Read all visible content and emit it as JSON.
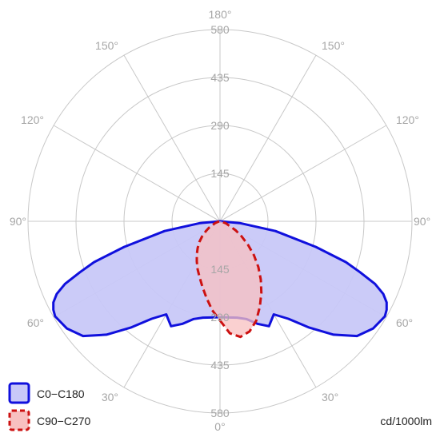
{
  "chart_data": {
    "type": "polar-luminous-intensity",
    "unit": "cd/1000lm",
    "rings": [
      145,
      290,
      435,
      580
    ],
    "max": 580,
    "angle_labels": [
      {
        "deg": 0,
        "side": "bottom",
        "text": "0°"
      },
      {
        "deg": 30,
        "side": "left",
        "text": "30°"
      },
      {
        "deg": 30,
        "side": "right",
        "text": "30°"
      },
      {
        "deg": 60,
        "side": "left",
        "text": "60°"
      },
      {
        "deg": 60,
        "side": "right",
        "text": "60°"
      },
      {
        "deg": 90,
        "side": "left",
        "text": "90°"
      },
      {
        "deg": 90,
        "side": "right",
        "text": "90°"
      },
      {
        "deg": 120,
        "side": "left",
        "text": "120°"
      },
      {
        "deg": 120,
        "side": "right",
        "text": "120°"
      },
      {
        "deg": 150,
        "side": "left",
        "text": "150°"
      },
      {
        "deg": 150,
        "side": "right",
        "text": "150°"
      },
      {
        "deg": 180,
        "side": "top",
        "text": "180°"
      }
    ],
    "series": [
      {
        "name": "C0−C180",
        "color": "#1010dd",
        "fill": "#c8c8f8",
        "dash": "solid",
        "gamma": [
          0,
          5,
          10,
          15,
          20,
          25,
          30,
          35,
          40,
          45,
          50,
          55,
          60,
          62,
          64,
          66,
          68,
          70,
          72,
          75,
          80,
          85,
          90
        ],
        "intensity": [
          290,
          292,
          296,
          306,
          330,
          350,
          325,
          360,
          420,
          485,
          540,
          565,
          575,
          570,
          560,
          540,
          505,
          450,
          400,
          300,
          170,
          60,
          0
        ]
      },
      {
        "name": "C90−C270",
        "color": "#cc1111",
        "fill": "#f8c0c0",
        "dash": "dashed",
        "gamma": [
          0,
          5,
          10,
          15,
          20,
          25,
          30,
          35,
          40,
          45,
          50,
          55,
          60,
          70,
          80,
          90
        ],
        "intensity": [
          300,
          340,
          355,
          345,
          320,
          285,
          250,
          215,
          180,
          145,
          110,
          80,
          55,
          20,
          5,
          0
        ],
        "gamma_left": [
          0,
          5,
          10,
          15,
          20,
          25,
          30,
          35,
          40,
          45,
          50,
          55,
          60,
          70,
          80,
          90
        ],
        "intensity_left": [
          300,
          270,
          235,
          205,
          180,
          160,
          140,
          122,
          105,
          88,
          70,
          52,
          38,
          15,
          4,
          0
        ]
      }
    ]
  }
}
